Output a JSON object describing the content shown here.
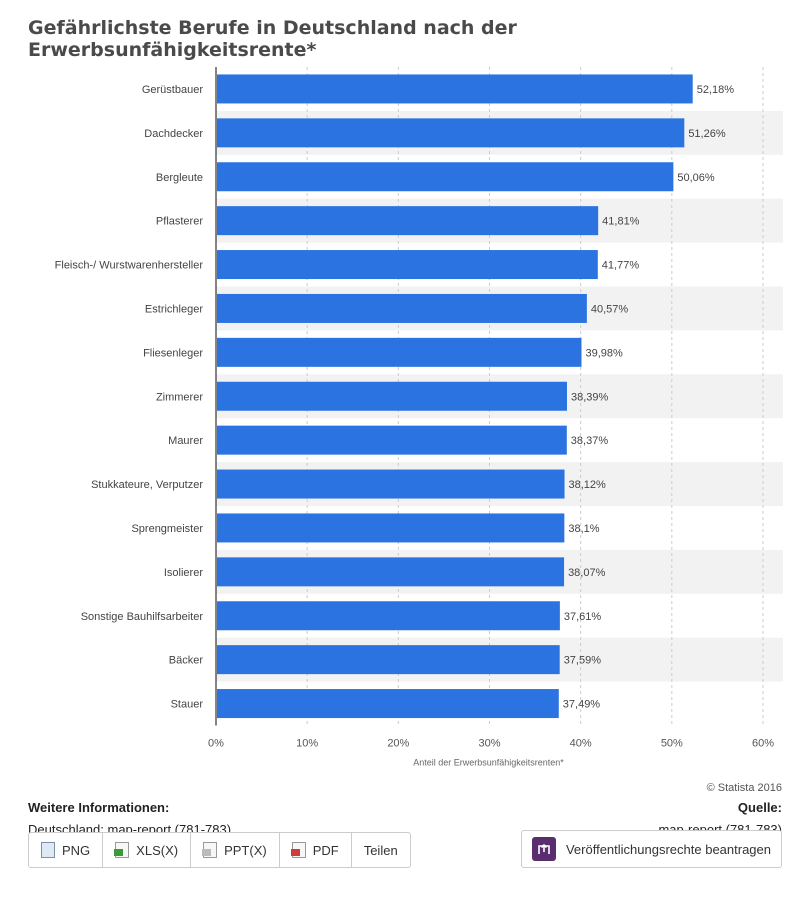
{
  "title": "Gefährlichste Berufe in Deutschland nach der Erwerbsunfähigkeitsrente*",
  "colors": {
    "bar": "#2a73e0",
    "grid": "#cccccc",
    "band": "#f2f2f2"
  },
  "chart_data": {
    "type": "bar",
    "orientation": "horizontal",
    "categories": [
      "Gerüstbauer",
      "Dachdecker",
      "Bergleute",
      "Pflasterer",
      "Fleisch-/ Wurstwarenhersteller",
      "Estrichleger",
      "Fliesenleger",
      "Zimmerer",
      "Maurer",
      "Stukkateure, Verputzer",
      "Sprengmeister",
      "Isolierer",
      "Sonstige Bauhilfsarbeiter",
      "Bäcker",
      "Stauer"
    ],
    "values": [
      52.18,
      51.26,
      50.06,
      41.81,
      41.77,
      40.57,
      39.98,
      38.39,
      38.37,
      38.12,
      38.1,
      38.07,
      37.61,
      37.59,
      37.49
    ],
    "value_labels": [
      "52,18%",
      "51,26%",
      "50,06%",
      "41,81%",
      "41,77%",
      "40,57%",
      "39,98%",
      "38,39%",
      "38,37%",
      "38,12%",
      "38,1%",
      "38,07%",
      "37,61%",
      "37,59%",
      "37,49%"
    ],
    "xlim": [
      0,
      60
    ],
    "xticks": [
      "0%",
      "10%",
      "20%",
      "30%",
      "40%",
      "50%",
      "60%"
    ],
    "xlabel": "Anteil der Erwerbsunfähigkeitsrenten*",
    "grid": true
  },
  "copyright": "© Statista 2016",
  "info": {
    "heading": "Weitere Informationen:",
    "text": "Deutschland; map-report (781-783)"
  },
  "source": {
    "heading": "Quelle:",
    "text": "map-report (781-783)"
  },
  "toolbar": {
    "png": "PNG",
    "xls": "XLS(X)",
    "ppt": "PPT(X)",
    "pdf": "PDF",
    "share": "Teilen"
  },
  "rights_button": "Veröffentlichungsrechte beantragen"
}
